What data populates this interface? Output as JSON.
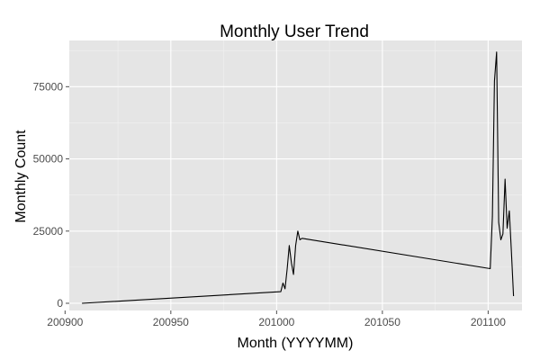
{
  "chart_data": {
    "type": "line",
    "title": "Monthly User Trend",
    "xlabel": "Month (YYYYMM)",
    "ylabel": "Monthly Count",
    "xlim": [
      200902,
      201116
    ],
    "ylim": [
      -2500,
      91000
    ],
    "x_ticks": [
      200900,
      200950,
      201000,
      201050,
      201100
    ],
    "x_tick_labels": [
      "200900",
      "200950",
      "201000",
      "201050",
      "201100"
    ],
    "y_ticks": [
      0,
      25000,
      50000,
      75000
    ],
    "y_tick_labels": [
      "0",
      "25000",
      "50000",
      "75000"
    ],
    "grid": true,
    "legend": "none",
    "colors": {
      "panel": "#e5e5e5",
      "line": "#000000",
      "grid": "#ffffff",
      "tick_text": "#4d4d4d"
    },
    "series": [
      {
        "x": [
          200908,
          201002,
          201003,
          201004,
          201005,
          201006,
          201007,
          201008,
          201009,
          201010,
          201011,
          201012,
          201101,
          201102,
          201103,
          201104,
          201105,
          201106,
          201107,
          201108,
          201109,
          201110,
          201111,
          201112
        ],
        "y": [
          0,
          4000,
          7000,
          5000,
          12000,
          20000,
          14000,
          10000,
          20000,
          25000,
          22000,
          22500,
          12000,
          30000,
          77000,
          87000,
          28000,
          22000,
          24000,
          43000,
          26000,
          32000,
          18000,
          2500
        ]
      }
    ]
  }
}
